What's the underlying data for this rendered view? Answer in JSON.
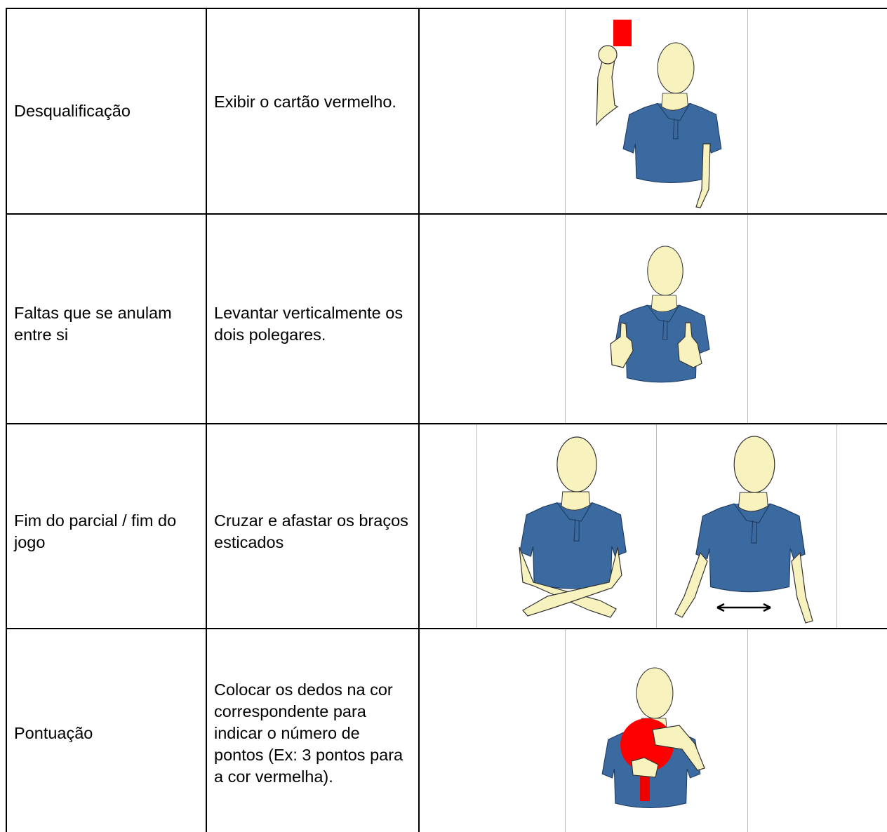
{
  "table": {
    "rows": [
      [
        "Desqualificação",
        "Exibir o cartão vermelho."
      ],
      [
        "Faltas que se anulam entre si",
        "Levantar verticalmente os dois polegares."
      ],
      [
        "Fim do parcial / fim do jogo",
        "Cruzar e afastar os braços esticados"
      ],
      [
        "Pontuação",
        "Colocar os dedos na cor correspondente para indicar o número de pontos (Ex: 3 pontos para a cor vermelha)."
      ]
    ]
  }
}
